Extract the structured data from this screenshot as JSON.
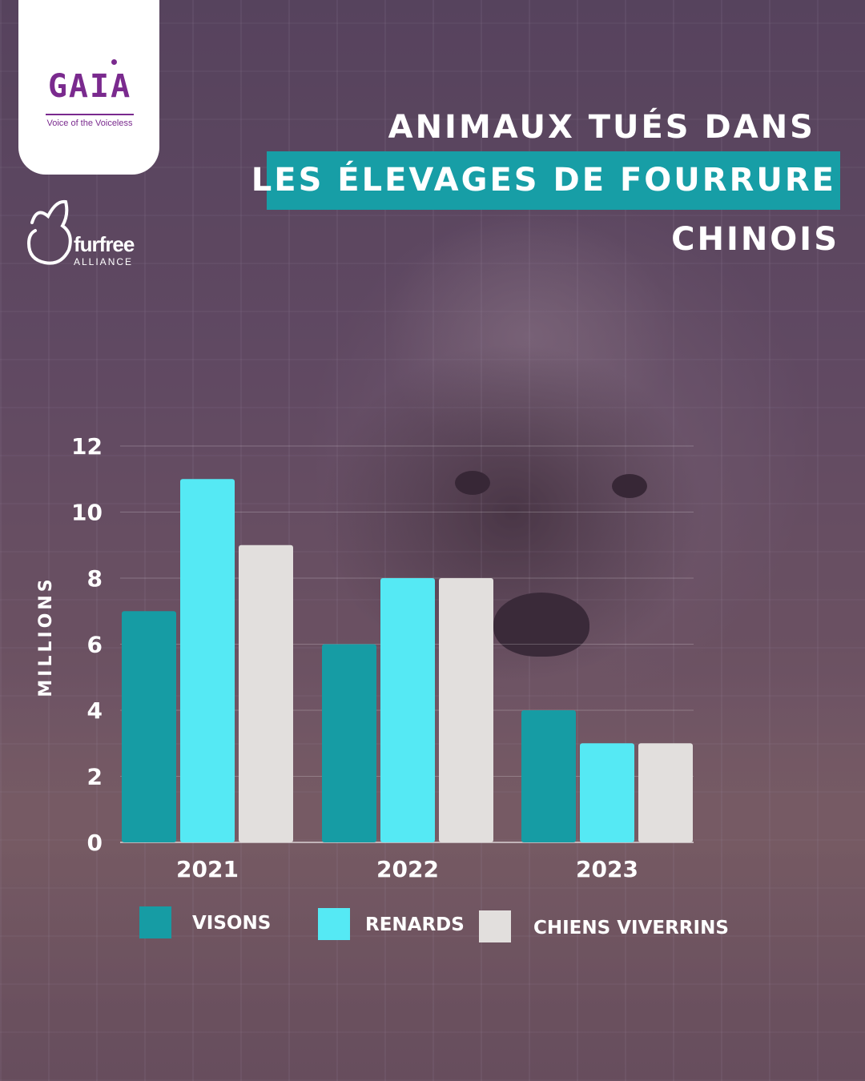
{
  "logo": {
    "name": "GAIA",
    "tagline": "Voice of the Voiceless"
  },
  "partner": {
    "name": "furfree",
    "sub": "ALLIANCE"
  },
  "title": {
    "line1": "ANIMAUX TUÉS DANS",
    "line2": "LES ÉLEVAGES DE FOURRURE",
    "line3": "CHINOIS"
  },
  "colors": {
    "visons": "#169ca4",
    "renards": "#55e9f4",
    "chiens": "#e2dfdd",
    "highlight": "#179ea6"
  },
  "chart_data": {
    "type": "bar",
    "categories": [
      "2021",
      "2022",
      "2023"
    ],
    "series": [
      {
        "name": "VISONS",
        "values": [
          7,
          6,
          4
        ]
      },
      {
        "name": "RENARDS",
        "values": [
          11,
          8,
          3
        ]
      },
      {
        "name": "CHIENS VIVERRINS",
        "values": [
          9,
          8,
          3
        ]
      }
    ],
    "ylabel": "MILLIONS",
    "ylim": [
      0,
      12
    ],
    "yticks": [
      0,
      2,
      4,
      6,
      8,
      10,
      12
    ],
    "grid": true,
    "legend": "bottom"
  }
}
